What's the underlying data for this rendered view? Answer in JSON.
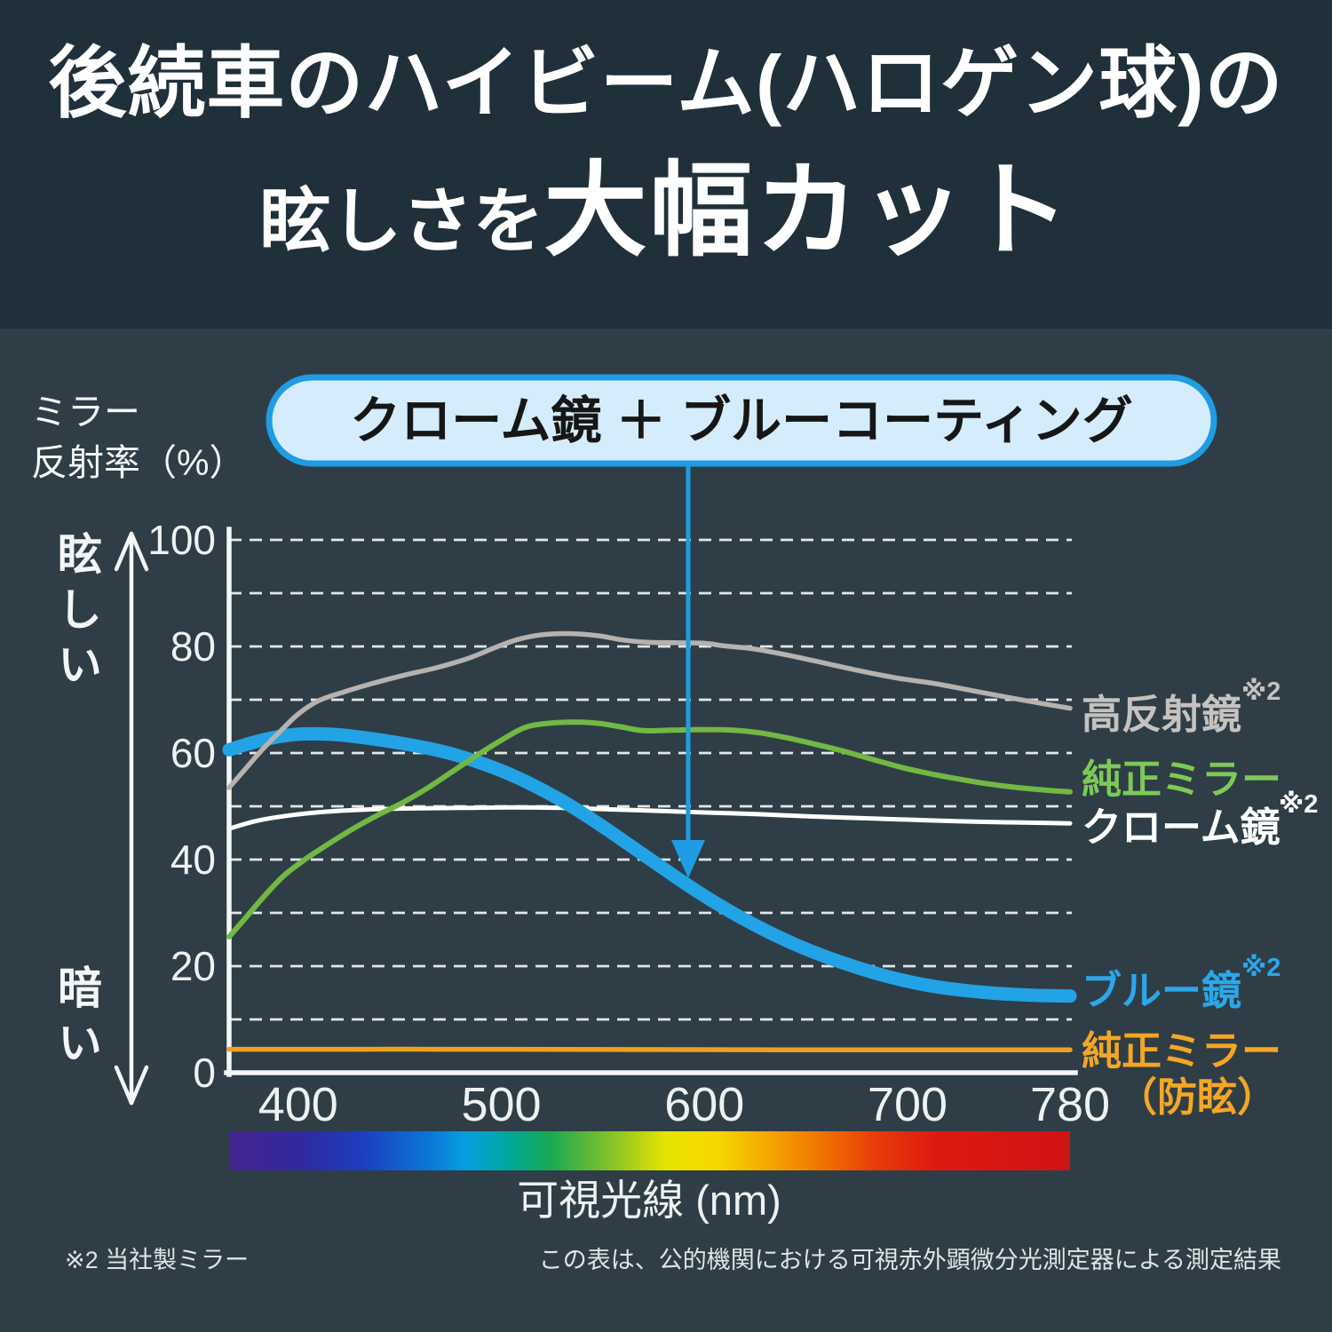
{
  "title": {
    "line1": "後続車のハイビーム(ハロゲン球)の",
    "line2_normal": "眩しさを",
    "line2_big": "大幅カット"
  },
  "y_axis": {
    "title_line1": "ミラー",
    "title_line2": "反射率（%）",
    "top_label": "眩しい",
    "bottom_label": "暗い"
  },
  "callout": {
    "text": "クローム鏡 ＋ ブルーコーティング",
    "color": "#1f9ce3",
    "fill": "#d4ecfb"
  },
  "footnotes": {
    "left": "※2 当社製ミラー",
    "right": "この表は、公的機関における可視赤外顕微分光測定器による測定結果"
  },
  "chart_data": {
    "type": "line",
    "xlabel": "可視光線 (nm)",
    "ylabel": "ミラー反射率（%）",
    "x_range": [
      366,
      780
    ],
    "ylim": [
      0,
      100
    ],
    "grid_step": 10,
    "grid": true,
    "y_ticks": [
      100,
      80,
      60,
      40,
      20,
      0
    ],
    "x_ticks": [
      {
        "label": "400",
        "nm": 400
      },
      {
        "label": "500",
        "nm": 500
      },
      {
        "label": "600",
        "nm": 600
      },
      {
        "label": "700",
        "nm": 700
      },
      {
        "label": "780",
        "nm": 780
      }
    ],
    "spectrum": [
      [
        "0%",
        "#45258e"
      ],
      [
        "8%",
        "#31289e"
      ],
      [
        "16%",
        "#1c3ec0"
      ],
      [
        "24%",
        "#0b78d8"
      ],
      [
        "28%",
        "#089ee0"
      ],
      [
        "33%",
        "#00a8a0"
      ],
      [
        "38%",
        "#17a854"
      ],
      [
        "45%",
        "#7fc02c"
      ],
      [
        "52%",
        "#e8e400"
      ],
      [
        "58%",
        "#f6d800"
      ],
      [
        "64%",
        "#f5a800"
      ],
      [
        "70%",
        "#f07800"
      ],
      [
        "77%",
        "#e83a0a"
      ],
      [
        "84%",
        "#de1a10"
      ],
      [
        "100%",
        "#cf1315"
      ]
    ],
    "series": [
      {
        "id": "chrome",
        "label": "クローム鏡",
        "label_sup": "※2",
        "color": "#ffffff",
        "label_color": "#ffffff",
        "width": 5,
        "points": [
          [
            366,
            45.8
          ],
          [
            380,
            47.3
          ],
          [
            396,
            48.3
          ],
          [
            414,
            49.0
          ],
          [
            434,
            49.4
          ],
          [
            456,
            49.6
          ],
          [
            480,
            49.7
          ],
          [
            505,
            49.8
          ],
          [
            530,
            49.7
          ],
          [
            556,
            49.4
          ],
          [
            580,
            49.1
          ],
          [
            604,
            48.8
          ],
          [
            628,
            48.5
          ],
          [
            652,
            48.1
          ],
          [
            676,
            47.8
          ],
          [
            700,
            47.5
          ],
          [
            724,
            47.2
          ],
          [
            748,
            47.0
          ],
          [
            766,
            46.9
          ],
          [
            780,
            46.8
          ]
        ]
      },
      {
        "id": "blue-mirror",
        "label": "ブルー鏡",
        "label_sup": "※2",
        "color": "#22a3e6",
        "label_color": "#2ba7ea",
        "width": 15,
        "points": [
          [
            366,
            60.6
          ],
          [
            377,
            61.9
          ],
          [
            388,
            62.9
          ],
          [
            399,
            63.5
          ],
          [
            410,
            63.6
          ],
          [
            421,
            63.4
          ],
          [
            432,
            62.9
          ],
          [
            443,
            62.3
          ],
          [
            454,
            61.6
          ],
          [
            465,
            60.8
          ],
          [
            476,
            59.8
          ],
          [
            487,
            58.5
          ],
          [
            498,
            57.0
          ],
          [
            509,
            55.2
          ],
          [
            520,
            53.1
          ],
          [
            531,
            50.8
          ],
          [
            542,
            48.2
          ],
          [
            553,
            45.4
          ],
          [
            564,
            42.5
          ],
          [
            575,
            39.6
          ],
          [
            586,
            36.7
          ],
          [
            597,
            33.9
          ],
          [
            608,
            31.3
          ],
          [
            619,
            28.9
          ],
          [
            630,
            26.7
          ],
          [
            641,
            24.7
          ],
          [
            652,
            22.9
          ],
          [
            663,
            21.3
          ],
          [
            674,
            19.9
          ],
          [
            685,
            18.6
          ],
          [
            696,
            17.5
          ],
          [
            707,
            16.6
          ],
          [
            718,
            15.9
          ],
          [
            729,
            15.4
          ],
          [
            740,
            15.0
          ],
          [
            752,
            14.7
          ],
          [
            764,
            14.5
          ],
          [
            780,
            14.4
          ]
        ]
      },
      {
        "id": "high-reflect",
        "label": "高反射鏡",
        "label_sup": "※2",
        "color": "#b5b2af",
        "label_color": "#c5c2bf",
        "width": 5.5,
        "points": [
          [
            366,
            53.5
          ],
          [
            374,
            57.0
          ],
          [
            382,
            60.5
          ],
          [
            391,
            64.0
          ],
          [
            400,
            67.3
          ],
          [
            410,
            69.8
          ],
          [
            422,
            71.4
          ],
          [
            436,
            73.0
          ],
          [
            452,
            74.6
          ],
          [
            468,
            76.0
          ],
          [
            484,
            77.8
          ],
          [
            497,
            79.8
          ],
          [
            508,
            81.3
          ],
          [
            520,
            82.2
          ],
          [
            535,
            82.4
          ],
          [
            548,
            82.0
          ],
          [
            560,
            81.2
          ],
          [
            572,
            80.8
          ],
          [
            586,
            80.7
          ],
          [
            600,
            80.6
          ],
          [
            610,
            80.1
          ],
          [
            625,
            79.5
          ],
          [
            642,
            78.3
          ],
          [
            660,
            76.8
          ],
          [
            678,
            75.3
          ],
          [
            696,
            74.0
          ],
          [
            714,
            73.0
          ],
          [
            732,
            71.7
          ],
          [
            750,
            70.4
          ],
          [
            766,
            69.3
          ],
          [
            780,
            68.4
          ]
        ]
      },
      {
        "id": "oem-mirror",
        "label": "純正ミラー",
        "label_sup": "",
        "color": "#72b843",
        "label_color": "#7dc957",
        "width": 6,
        "points": [
          [
            366,
            25.5
          ],
          [
            374,
            29.0
          ],
          [
            383,
            33.0
          ],
          [
            393,
            37.0
          ],
          [
            404,
            40.2
          ],
          [
            416,
            43.2
          ],
          [
            428,
            46.0
          ],
          [
            440,
            48.5
          ],
          [
            452,
            50.8
          ],
          [
            464,
            53.5
          ],
          [
            477,
            56.8
          ],
          [
            489,
            59.8
          ],
          [
            500,
            62.4
          ],
          [
            511,
            64.7
          ],
          [
            521,
            65.5
          ],
          [
            534,
            65.8
          ],
          [
            547,
            65.6
          ],
          [
            559,
            64.9
          ],
          [
            570,
            64.2
          ],
          [
            584,
            64.3
          ],
          [
            599,
            64.4
          ],
          [
            614,
            64.3
          ],
          [
            627,
            63.8
          ],
          [
            640,
            62.9
          ],
          [
            654,
            61.7
          ],
          [
            668,
            60.4
          ],
          [
            682,
            58.9
          ],
          [
            696,
            57.4
          ],
          [
            710,
            56.2
          ],
          [
            724,
            55.2
          ],
          [
            738,
            54.3
          ],
          [
            752,
            53.6
          ],
          [
            766,
            53.1
          ],
          [
            780,
            52.7
          ]
        ]
      },
      {
        "id": "oem-antiglare",
        "label": "純正ミラー",
        "label2": "（防眩）",
        "label_sup": "",
        "color": "#f0a01e",
        "label_color": "#f5a624",
        "width": 5.5,
        "points": [
          [
            366,
            4.4
          ],
          [
            500,
            4.4
          ],
          [
            640,
            4.3
          ],
          [
            780,
            4.3
          ]
        ]
      }
    ]
  }
}
